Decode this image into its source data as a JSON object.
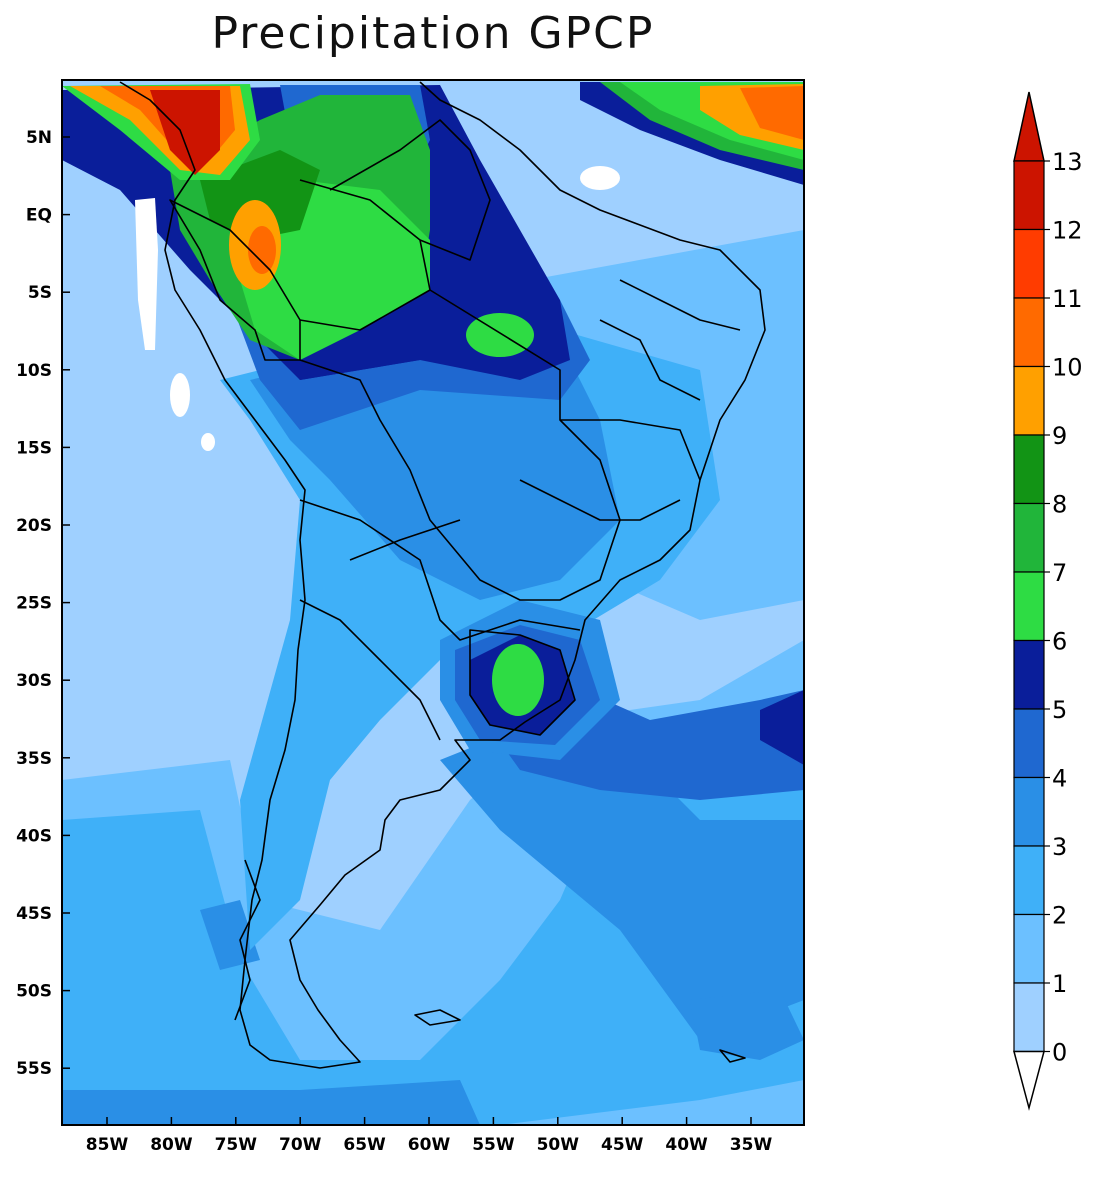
{
  "title": "Precipitation GPCP",
  "map": {
    "lat_ticks": [
      "5N",
      "EQ",
      "5S",
      "10S",
      "15S",
      "20S",
      "25S",
      "30S",
      "35S",
      "40S",
      "45S",
      "50S",
      "55S"
    ],
    "lon_ticks": [
      "85W",
      "80W",
      "75W",
      "70W",
      "65W",
      "60W",
      "55W",
      "50W",
      "45W",
      "40W",
      "35W"
    ],
    "land_outline_color": "#000000"
  },
  "colorbar": {
    "levels": [
      "0",
      "1",
      "2",
      "3",
      "4",
      "5",
      "6",
      "7",
      "8",
      "9",
      "10",
      "11",
      "12",
      "13"
    ],
    "colors": [
      "#ffffff",
      "#9fd0ff",
      "#6cc0ff",
      "#3fb0f8",
      "#2a8fe6",
      "#1f68d0",
      "#0a1e9a",
      "#2edc44",
      "#21b53a",
      "#129415",
      "#ffa000",
      "#ff6a00",
      "#ff3c00",
      "#cc1400"
    ],
    "under_color": "#ffffff",
    "over_color": "#cc1400"
  }
}
